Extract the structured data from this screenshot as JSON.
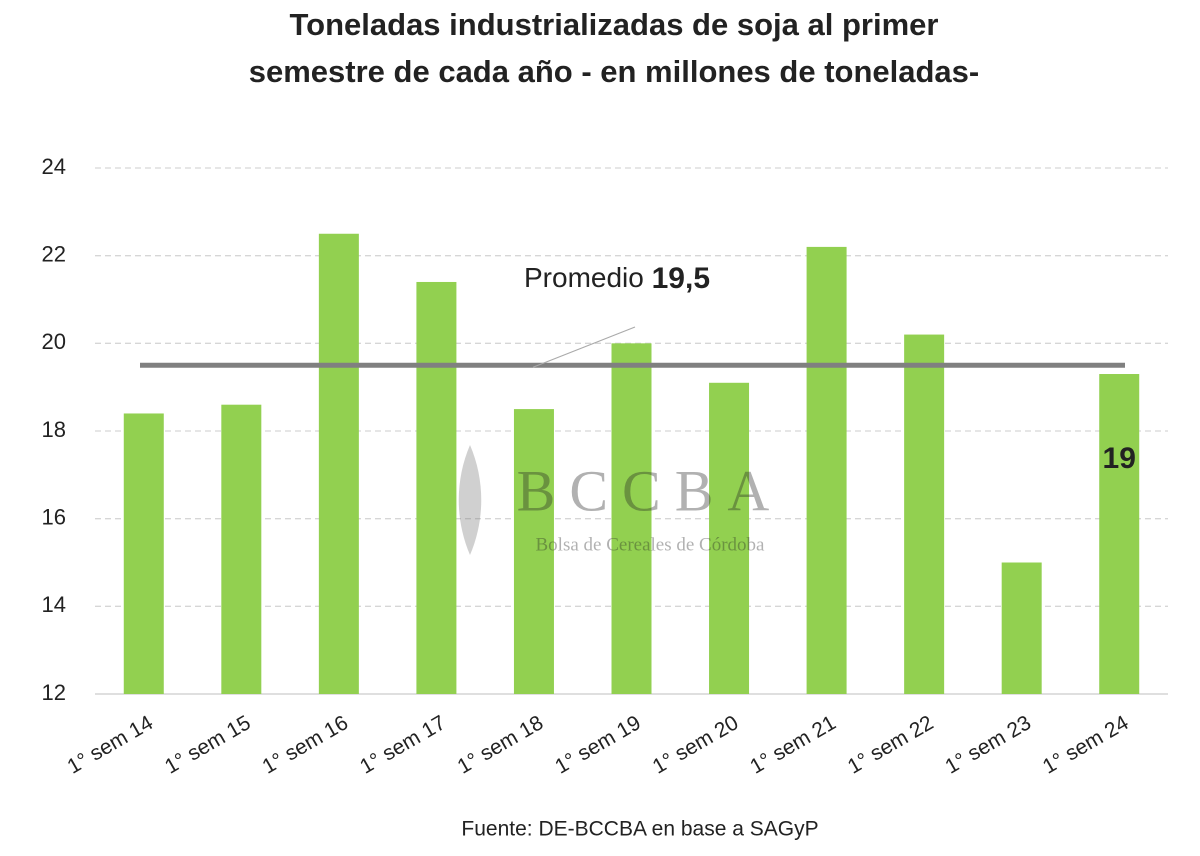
{
  "chart_data": {
    "type": "bar",
    "title": [
      "Toneladas industrializadas de soja al primer",
      "semestre de cada año - en millones de toneladas-"
    ],
    "categories": [
      "1° sem 14",
      "1° sem 15",
      "1° sem 16",
      "1° sem 17",
      "1° sem 18",
      "1° sem 19",
      "1° sem 20",
      "1° sem 21",
      "1° sem 22",
      "1° sem 23",
      "1° sem 24"
    ],
    "values": [
      18.4,
      18.6,
      22.5,
      21.4,
      18.5,
      20.0,
      19.1,
      22.2,
      20.2,
      15.0,
      19.3
    ],
    "value_labels": [
      null,
      null,
      null,
      null,
      null,
      null,
      null,
      null,
      null,
      null,
      "19"
    ],
    "color": "#92d050",
    "ylim": [
      12,
      24
    ],
    "yticks": [
      12,
      14,
      16,
      18,
      20,
      22,
      24
    ],
    "grid": true,
    "average": {
      "label": "Promedio",
      "value": 19.5,
      "value_label": "19,5",
      "color": "#808080"
    },
    "watermark": {
      "name": "BCCBA",
      "subtitle": "Bolsa de Cereales de Córdoba"
    },
    "source": "Fuente: DE-BCCBA en base a SAGyP"
  }
}
